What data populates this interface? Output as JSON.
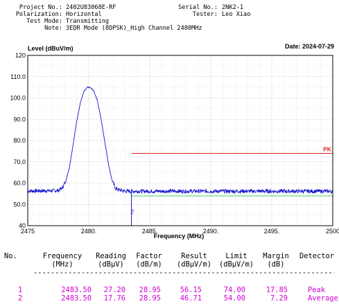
{
  "header": {
    "project_label": "Project No.:",
    "project_value": "2402U83068E-RF",
    "polarization_label": "Polarization:",
    "polarization_value": "Horizontal",
    "test_mode_label": "Test Mode:",
    "test_mode_value": "Transmitting",
    "note_label": "Note:",
    "note_value": "3EDR Mode (8DPSK)_High Channel 2480MHz",
    "serial_label": "Serial No.:",
    "serial_value": "2NK2-1",
    "tester_label": "Tester:",
    "tester_value": "Leo Xiao"
  },
  "chart_data": {
    "type": "line",
    "title": "",
    "ylabel": "Level (dBuV/m)",
    "xlabel": "Frequency (MHz)",
    "date": "Date: 2024-07-29",
    "xlim": [
      2475,
      2500
    ],
    "ylim": [
      40,
      120
    ],
    "x_ticks": [
      2475,
      2480,
      2485,
      2490,
      2495,
      2500
    ],
    "x_tick_labels": [
      "2475",
      "2480.",
      "2485.",
      "2490.",
      "2495.",
      "2500"
    ],
    "y_ticks": [
      40,
      50,
      60,
      70,
      80,
      90,
      100,
      110,
      120
    ],
    "y_tick_labels": [
      "40",
      "50.0",
      "60.0",
      "70.0",
      "80.0",
      "90.0",
      "100.0",
      "110.0",
      "120"
    ],
    "grid": true,
    "limit_lines": [
      {
        "label": "PK",
        "x": [
          2483.5,
          2500
        ],
        "y": 74.0,
        "color": "#dd2222"
      },
      {
        "label": "",
        "x": [
          2483.5,
          2500
        ],
        "y": 54.0,
        "color": "#44cc66"
      }
    ],
    "series": [
      {
        "color": "#1414cc",
        "x": [
          2475,
          2477.5,
          2477.8,
          2478.1,
          2478.4,
          2478.7,
          2479.0,
          2479.3,
          2479.6,
          2479.9,
          2480.1,
          2480.4,
          2480.7,
          2481.0,
          2481.3,
          2481.6,
          2481.9,
          2482.2,
          2482.5,
          2483.0,
          2500
        ],
        "y": [
          56.3,
          56.5,
          57.5,
          60.5,
          67.0,
          77.5,
          88.5,
          97.5,
          103.0,
          105.0,
          104.9,
          103.5,
          99.0,
          90.5,
          80.0,
          69.5,
          61.5,
          57.5,
          56.8,
          56.2,
          56.2
        ]
      }
    ],
    "marker": {
      "label": "2",
      "x": 2483.5,
      "y": 46.71
    }
  },
  "table": {
    "headers": {
      "no": "No.",
      "frequency": "Frequency",
      "frequency_unit": "(MHz)",
      "reading": "Reading",
      "reading_unit": "(dBμV)",
      "factor": "Factor",
      "factor_unit": "(dB/m)",
      "result": "Result",
      "result_unit": "(dBμV/m)",
      "limit": "Limit",
      "limit_unit": "(dBμV/m)",
      "margin": "Margin",
      "margin_unit": "(dB)",
      "detector": "Detector"
    },
    "separator": "------------------------------------------------------------------------",
    "rows": [
      {
        "no": "1",
        "frequency": "2483.50",
        "reading": "27.20",
        "factor": "28.95",
        "result": "56.15",
        "limit": "74.00",
        "margin": "17.85",
        "detector": "Peak"
      },
      {
        "no": "2",
        "frequency": "2483.50",
        "reading": "17.76",
        "factor": "28.95",
        "result": "46.71",
        "limit": "54.00",
        "margin": "7.29",
        "detector": "Average"
      }
    ]
  }
}
